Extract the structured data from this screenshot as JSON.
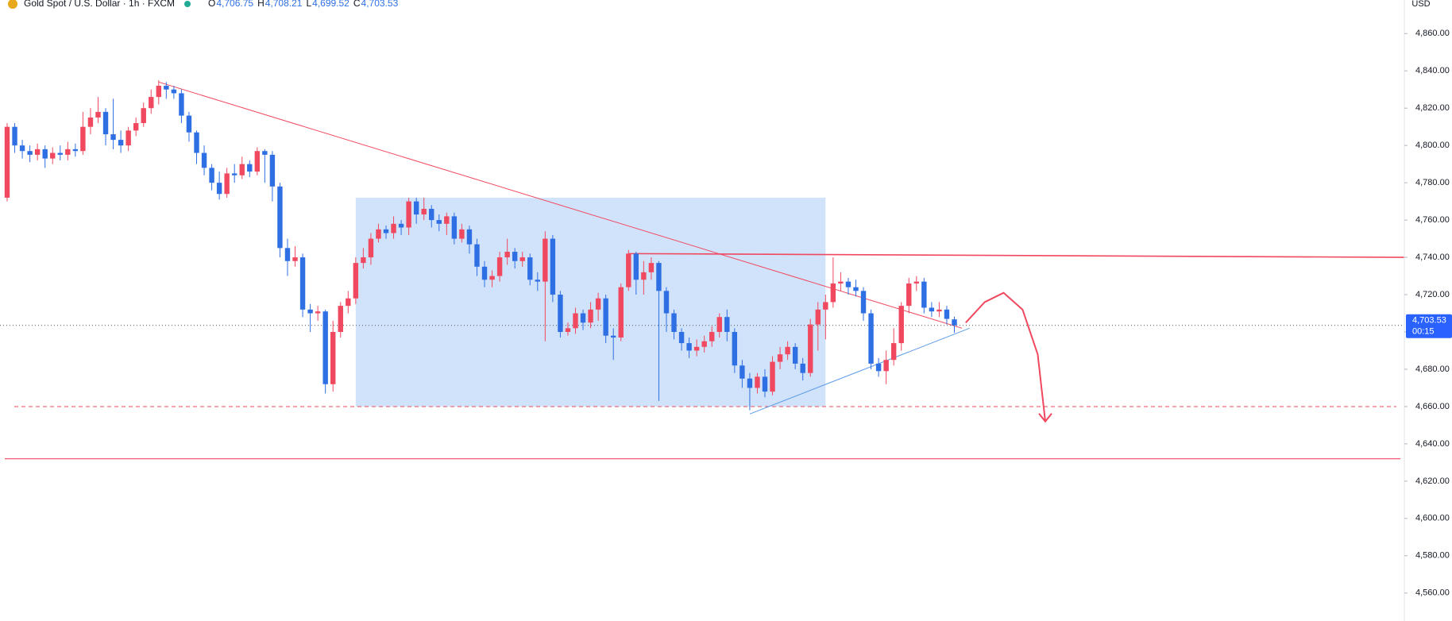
{
  "chart_data": {
    "type": "candlestick",
    "title": "Gold Spot / U.S. Dollar · 1h · FXCM",
    "ohlc_header": [
      {
        "key": "O",
        "label": "4,706.75"
      },
      {
        "key": "H",
        "label": "4,708.21"
      },
      {
        "key": "L",
        "label": "4,699.52"
      },
      {
        "key": "C",
        "label": "4,703.53"
      }
    ],
    "currency": "USD",
    "up_color": "#f0485f",
    "down_color": "#2f6fe4",
    "open": [
      4772,
      4810,
      4800,
      4797,
      4795,
      4798,
      4793,
      4796,
      4795,
      4798,
      4797,
      4810,
      4815,
      4818,
      4806,
      4803,
      4800,
      4808,
      4812,
      4820,
      4826,
      4832,
      4830,
      4828,
      4816,
      4807,
      4796,
      4788,
      4780,
      4774,
      4785,
      4784,
      4790,
      4786,
      4797,
      4795,
      4778,
      4745,
      4738,
      4740,
      4712,
      4710,
      4711,
      4672,
      4700,
      4714,
      4718,
      4737,
      4740,
      4750,
      4755,
      4753,
      4758,
      4756,
      4770,
      4763,
      4766,
      4760,
      4758,
      4762,
      4750,
      4755,
      4747,
      4735,
      4728,
      4730,
      4740,
      4743,
      4738,
      4740,
      4728,
      4727,
      4750,
      4720,
      4700,
      4702,
      4710,
      4705,
      4712,
      4718,
      4698,
      4697,
      4724,
      4742,
      4728,
      4732,
      4737,
      4722,
      4710,
      4700,
      4694,
      4690,
      4692,
      4695,
      4700,
      4708,
      4700,
      4682,
      4675,
      4670,
      4676,
      4668,
      4684,
      4688,
      4692,
      4683,
      4678,
      4704,
      4712,
      4716,
      4726,
      4727,
      4724,
      4722,
      4710,
      4683,
      4679,
      4685,
      4694,
      4714,
      4726,
      4727,
      4713,
      4711,
      4712,
      4706.75
    ],
    "high": [
      4812,
      4812,
      4803,
      4800,
      4801,
      4800,
      4799,
      4800,
      4802,
      4801,
      4818,
      4820,
      4826,
      4820,
      4825,
      4808,
      4810,
      4815,
      4823,
      4830,
      4835,
      4834,
      4832,
      4830,
      4818,
      4808,
      4800,
      4790,
      4786,
      4788,
      4790,
      4794,
      4792,
      4799,
      4798,
      4797,
      4780,
      4750,
      4746,
      4742,
      4715,
      4714,
      4712,
      4706,
      4716,
      4722,
      4740,
      4745,
      4753,
      4758,
      4757,
      4762,
      4760,
      4772,
      4772,
      4772,
      4768,
      4763,
      4764,
      4764,
      4758,
      4757,
      4750,
      4738,
      4733,
      4743,
      4750,
      4745,
      4743,
      4742,
      4732,
      4754,
      4752,
      4722,
      4705,
      4713,
      4712,
      4716,
      4721,
      4720,
      4702,
      4726,
      4744,
      4743,
      4738,
      4740,
      4738,
      4724,
      4712,
      4702,
      4697,
      4696,
      4698,
      4703,
      4710,
      4712,
      4702,
      4685,
      4678,
      4678,
      4680,
      4687,
      4692,
      4695,
      4694,
      4686,
      4707,
      4716,
      4720,
      4740,
      4732,
      4729,
      4728,
      4724,
      4712,
      4686,
      4690,
      4702,
      4716,
      4729,
      4730,
      4729,
      4716,
      4716,
      4714,
      4708.21
    ],
    "low": [
      4770,
      4796,
      4793,
      4791,
      4792,
      4788,
      4790,
      4792,
      4792,
      4794,
      4795,
      4806,
      4812,
      4800,
      4798,
      4796,
      4797,
      4805,
      4810,
      4817,
      4822,
      4825,
      4825,
      4812,
      4802,
      4790,
      4784,
      4776,
      4771,
      4772,
      4780,
      4782,
      4783,
      4784,
      4780,
      4770,
      4740,
      4730,
      4735,
      4708,
      4700,
      4706,
      4667,
      4668,
      4697,
      4710,
      4715,
      4734,
      4736,
      4748,
      4750,
      4750,
      4752,
      4752,
      4758,
      4760,
      4756,
      4754,
      4752,
      4747,
      4748,
      4742,
      4730,
      4724,
      4724,
      4727,
      4736,
      4734,
      4735,
      4725,
      4722,
      4695,
      4716,
      4697,
      4698,
      4699,
      4701,
      4702,
      4706,
      4694,
      4685,
      4695,
      4722,
      4720,
      4720,
      4728,
      4663,
      4700,
      4696,
      4690,
      4686,
      4687,
      4689,
      4692,
      4697,
      4695,
      4678,
      4670,
      4658,
      4667,
      4665,
      4666,
      4680,
      4685,
      4680,
      4674,
      4676,
      4690,
      4696,
      4713,
      4722,
      4720,
      4719,
      4706,
      4680,
      4676,
      4672,
      4682,
      4690,
      4710,
      4722,
      4710,
      4708,
      4708,
      4704,
      4699.52
    ],
    "close": [
      4810,
      4800,
      4797,
      4795,
      4798,
      4793,
      4796,
      4795,
      4798,
      4797,
      4810,
      4815,
      4818,
      4806,
      4803,
      4800,
      4808,
      4812,
      4820,
      4826,
      4832,
      4830,
      4828,
      4816,
      4807,
      4796,
      4788,
      4780,
      4774,
      4785,
      4784,
      4790,
      4786,
      4797,
      4795,
      4778,
      4745,
      4738,
      4740,
      4712,
      4710,
      4711,
      4672,
      4700,
      4714,
      4718,
      4737,
      4740,
      4750,
      4755,
      4753,
      4758,
      4756,
      4770,
      4763,
      4766,
      4760,
      4758,
      4762,
      4750,
      4755,
      4747,
      4735,
      4728,
      4730,
      4740,
      4743,
      4738,
      4740,
      4728,
      4727,
      4750,
      4720,
      4700,
      4702,
      4710,
      4705,
      4712,
      4718,
      4698,
      4697,
      4724,
      4742,
      4728,
      4732,
      4737,
      4722,
      4710,
      4700,
      4694,
      4690,
      4692,
      4695,
      4700,
      4708,
      4700,
      4682,
      4675,
      4670,
      4676,
      4668,
      4684,
      4688,
      4692,
      4683,
      4678,
      4704,
      4712,
      4716,
      4726,
      4727,
      4724,
      4722,
      4710,
      4683,
      4679,
      4685,
      4694,
      4714,
      4726,
      4727,
      4713,
      4711,
      4712,
      4707,
      4703.53
    ],
    "ylim": [
      4545,
      4878
    ],
    "yticks": [
      {
        "value": 4560,
        "label": "4,560.00"
      },
      {
        "value": 4580,
        "label": "4,580.00"
      },
      {
        "value": 4600,
        "label": "4,600.00"
      },
      {
        "value": 4620,
        "label": "4,620.00"
      },
      {
        "value": 4640,
        "label": "4,640.00"
      },
      {
        "value": 4660,
        "label": "4,660.00"
      },
      {
        "value": 4680,
        "label": "4,680.00"
      },
      {
        "value": 4700,
        "label": "4,700.00"
      },
      {
        "value": 4720,
        "label": "4,720.00"
      },
      {
        "value": 4740,
        "label": "4,740.00"
      },
      {
        "value": 4760,
        "label": "4,760.00"
      },
      {
        "value": 4780,
        "label": "4,780.00"
      },
      {
        "value": 4800,
        "label": "4,800.00"
      },
      {
        "value": 4820,
        "label": "4,820.00"
      },
      {
        "value": 4840,
        "label": "4,840.00"
      },
      {
        "value": 4860,
        "label": "4,860.00"
      }
    ],
    "last_price": {
      "value": 4703.53,
      "label": "4,703.53"
    },
    "countdown": "00:15",
    "drawings": {
      "box": {
        "from": 46,
        "to": 108,
        "top": 4772,
        "bottom": 4660,
        "color": "#cfe2fa"
      },
      "dashed_level": {
        "value": 4660,
        "color": "#f0485f"
      },
      "support_level": {
        "value": 4632,
        "color": "#f0485f"
      },
      "resistance_line": {
        "points": [
          [
            82,
            4742
          ],
          [
            195,
            4740
          ]
        ],
        "color": "#f0485f"
      },
      "falling_trend": {
        "points": [
          [
            20,
            4834
          ],
          [
            126,
            4702
          ]
        ],
        "color": "#f0485f"
      },
      "rising_trend": {
        "points": [
          [
            98,
            4656
          ],
          [
            127,
            4702
          ]
        ],
        "color": "#5b9be8"
      },
      "projection": {
        "points": [
          [
            126.5,
            4705
          ],
          [
            129,
            4716
          ],
          [
            131.5,
            4721
          ],
          [
            134,
            4712
          ],
          [
            136,
            4688
          ],
          [
            137,
            4652
          ]
        ],
        "color": "#f0485f"
      }
    }
  }
}
